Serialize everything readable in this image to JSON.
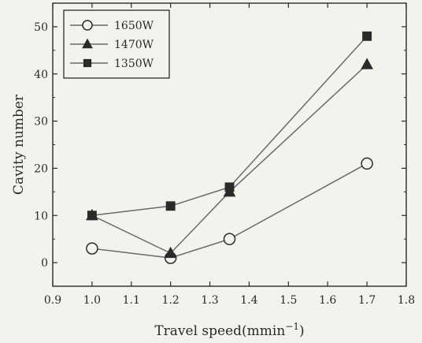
{
  "chart_data": {
    "type": "line",
    "xlabel": "Travel speed(mmin",
    "xlabel_sup": "−1",
    "xlabel_close": ")",
    "ylabel": "Cavity number",
    "xlim": [
      0.9,
      1.8
    ],
    "ylim": [
      -5,
      55
    ],
    "xticks": [
      "0.9",
      "1.0",
      "1.1",
      "1.2",
      "1.3",
      "1.4",
      "1.5",
      "1.6",
      "1.7",
      "1.8"
    ],
    "yticks": [
      "0",
      "10",
      "20",
      "30",
      "40",
      "50"
    ],
    "grid": false,
    "legend_position": "top-left",
    "series": [
      {
        "name": "1650W",
        "marker": "circle-open",
        "x": [
          1.0,
          1.2,
          1.35,
          1.7
        ],
        "y": [
          3,
          1,
          5,
          21
        ]
      },
      {
        "name": "1470W",
        "marker": "triangle-filled",
        "x": [
          1.0,
          1.2,
          1.35,
          1.7
        ],
        "y": [
          10,
          2,
          15,
          42
        ]
      },
      {
        "name": "1350W",
        "marker": "square-filled",
        "x": [
          1.0,
          1.2,
          1.35,
          1.7
        ],
        "y": [
          10,
          12,
          16,
          48
        ]
      }
    ],
    "colors": {
      "ink": "#2a2a2a",
      "line": "#6a6a6a",
      "background": "#f4f2ec"
    }
  }
}
